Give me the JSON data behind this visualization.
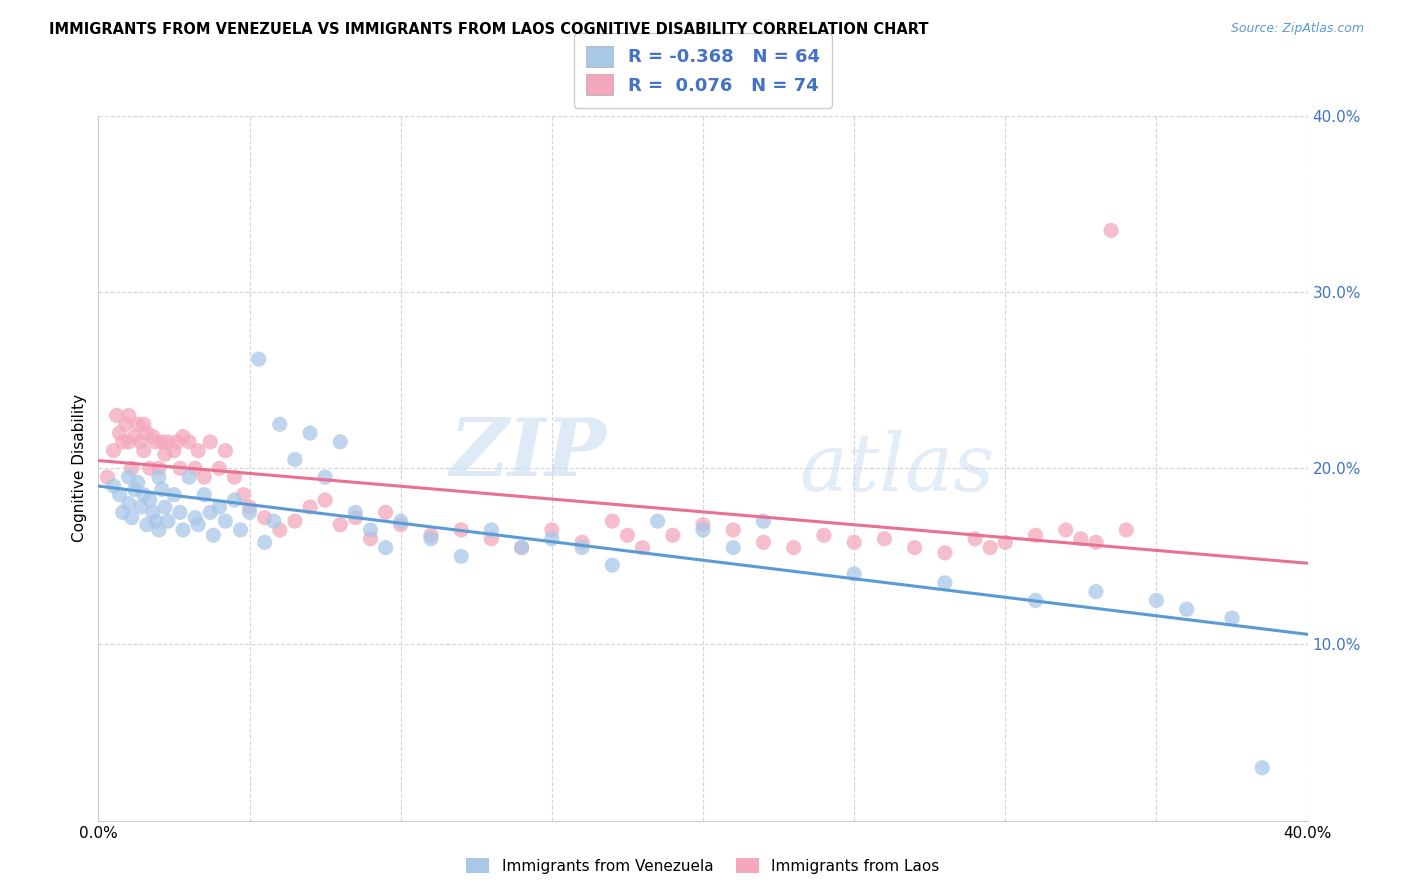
{
  "title": "IMMIGRANTS FROM VENEZUELA VS IMMIGRANTS FROM LAOS COGNITIVE DISABILITY CORRELATION CHART",
  "source": "Source: ZipAtlas.com",
  "ylabel": "Cognitive Disability",
  "xlim": [
    0.0,
    0.4
  ],
  "ylim": [
    0.0,
    0.4
  ],
  "ytick_values": [
    0.1,
    0.2,
    0.3,
    0.4
  ],
  "xtick_values": [
    0.0,
    0.05,
    0.1,
    0.15,
    0.2,
    0.25,
    0.3,
    0.35,
    0.4
  ],
  "blue_R": -0.368,
  "blue_N": 64,
  "pink_R": 0.076,
  "pink_N": 74,
  "blue_color": "#A8C8E8",
  "pink_color": "#F4A8BC",
  "blue_line_color": "#5B9BD5",
  "pink_line_color": "#E87090",
  "watermark_zip": "ZIP",
  "watermark_atlas": "atlas",
  "legend_label_blue": "Immigrants from Venezuela",
  "legend_label_pink": "Immigrants from Laos",
  "blue_scatter_x": [
    0.005,
    0.007,
    0.008,
    0.01,
    0.01,
    0.011,
    0.012,
    0.013,
    0.014,
    0.015,
    0.016,
    0.017,
    0.018,
    0.019,
    0.02,
    0.02,
    0.021,
    0.022,
    0.023,
    0.025,
    0.027,
    0.028,
    0.03,
    0.032,
    0.033,
    0.035,
    0.037,
    0.038,
    0.04,
    0.042,
    0.045,
    0.047,
    0.05,
    0.053,
    0.055,
    0.058,
    0.06,
    0.065,
    0.07,
    0.075,
    0.08,
    0.085,
    0.09,
    0.095,
    0.1,
    0.11,
    0.12,
    0.13,
    0.14,
    0.15,
    0.16,
    0.17,
    0.185,
    0.2,
    0.21,
    0.22,
    0.25,
    0.28,
    0.31,
    0.33,
    0.35,
    0.36,
    0.375,
    0.385
  ],
  "blue_scatter_y": [
    0.19,
    0.185,
    0.175,
    0.195,
    0.18,
    0.172,
    0.188,
    0.192,
    0.178,
    0.185,
    0.168,
    0.182,
    0.175,
    0.17,
    0.195,
    0.165,
    0.188,
    0.178,
    0.17,
    0.185,
    0.175,
    0.165,
    0.195,
    0.172,
    0.168,
    0.185,
    0.175,
    0.162,
    0.178,
    0.17,
    0.182,
    0.165,
    0.175,
    0.262,
    0.158,
    0.17,
    0.225,
    0.205,
    0.22,
    0.195,
    0.215,
    0.175,
    0.165,
    0.155,
    0.17,
    0.16,
    0.15,
    0.165,
    0.155,
    0.16,
    0.155,
    0.145,
    0.17,
    0.165,
    0.155,
    0.17,
    0.14,
    0.135,
    0.125,
    0.13,
    0.125,
    0.12,
    0.115,
    0.03
  ],
  "pink_scatter_x": [
    0.003,
    0.005,
    0.006,
    0.007,
    0.008,
    0.009,
    0.01,
    0.01,
    0.011,
    0.012,
    0.013,
    0.014,
    0.015,
    0.015,
    0.016,
    0.017,
    0.018,
    0.019,
    0.02,
    0.021,
    0.022,
    0.023,
    0.025,
    0.026,
    0.027,
    0.028,
    0.03,
    0.032,
    0.033,
    0.035,
    0.037,
    0.04,
    0.042,
    0.045,
    0.048,
    0.05,
    0.055,
    0.06,
    0.065,
    0.07,
    0.075,
    0.08,
    0.085,
    0.09,
    0.095,
    0.1,
    0.11,
    0.12,
    0.13,
    0.14,
    0.15,
    0.16,
    0.17,
    0.175,
    0.18,
    0.19,
    0.2,
    0.21,
    0.22,
    0.23,
    0.24,
    0.25,
    0.26,
    0.27,
    0.28,
    0.29,
    0.295,
    0.3,
    0.31,
    0.32,
    0.325,
    0.33,
    0.34,
    0.335
  ],
  "pink_scatter_y": [
    0.195,
    0.21,
    0.23,
    0.22,
    0.215,
    0.225,
    0.215,
    0.23,
    0.2,
    0.218,
    0.225,
    0.215,
    0.21,
    0.225,
    0.22,
    0.2,
    0.218,
    0.215,
    0.2,
    0.215,
    0.208,
    0.215,
    0.21,
    0.215,
    0.2,
    0.218,
    0.215,
    0.2,
    0.21,
    0.195,
    0.215,
    0.2,
    0.21,
    0.195,
    0.185,
    0.178,
    0.172,
    0.165,
    0.17,
    0.178,
    0.182,
    0.168,
    0.172,
    0.16,
    0.175,
    0.168,
    0.162,
    0.165,
    0.16,
    0.155,
    0.165,
    0.158,
    0.17,
    0.162,
    0.155,
    0.162,
    0.168,
    0.165,
    0.158,
    0.155,
    0.162,
    0.158,
    0.16,
    0.155,
    0.152,
    0.16,
    0.155,
    0.158,
    0.162,
    0.165,
    0.16,
    0.158,
    0.165,
    0.335
  ]
}
